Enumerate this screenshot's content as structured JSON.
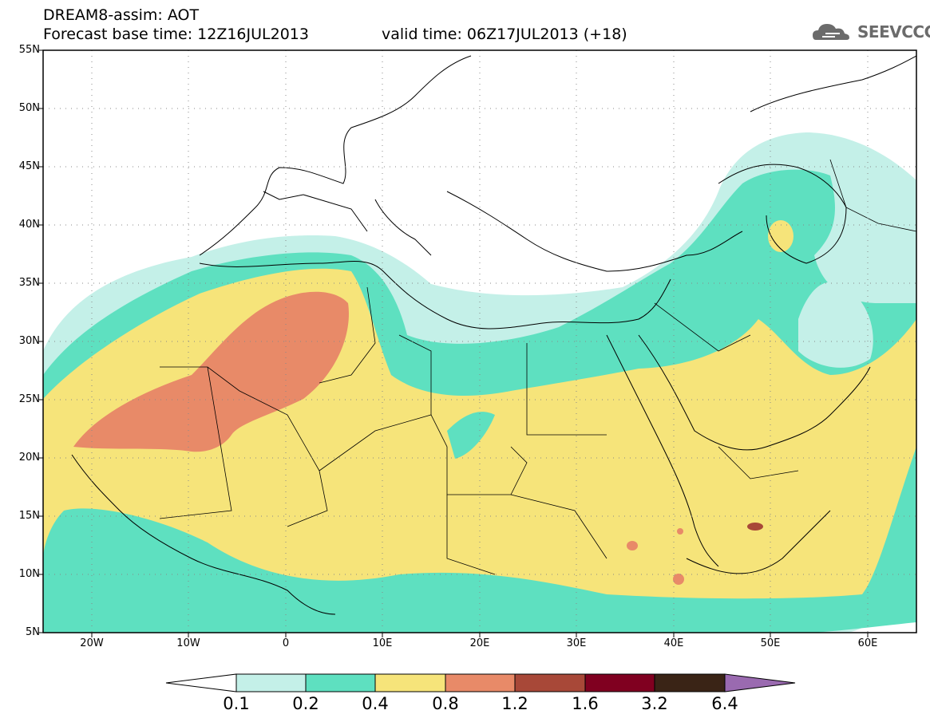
{
  "title": {
    "line1": "DREAM8-assim: AOT",
    "line2": "Forecast base time: 12Z16JUL2013",
    "valid": "valid time: 06Z17JUL2013 (+18)"
  },
  "logo_text": "SEEVCCC",
  "colors": {
    "c01_02": "#c4f0e8",
    "c02_04": "#5ee0c0",
    "c04_08": "#f6e47a",
    "c08_12": "#e88a68",
    "c12_16": "#a84838",
    "c16_32": "#800020",
    "c32_64": "#3a2416",
    "c64plus": "#9a6ab0"
  },
  "map": {
    "lon_range": [
      -25,
      65
    ],
    "lat_range": [
      5,
      55
    ],
    "lat_ticks": [
      "5N",
      "10N",
      "15N",
      "20N",
      "25N",
      "30N",
      "35N",
      "40N",
      "45N",
      "50N",
      "55N"
    ],
    "lon_ticks": [
      "20W",
      "10W",
      "0",
      "10E",
      "20E",
      "30E",
      "40E",
      "50E",
      "60E"
    ]
  },
  "colorbar": {
    "labels": [
      "0.1",
      "0.2",
      "0.4",
      "0.8",
      "1.2",
      "1.6",
      "3.2",
      "6.4"
    ]
  }
}
